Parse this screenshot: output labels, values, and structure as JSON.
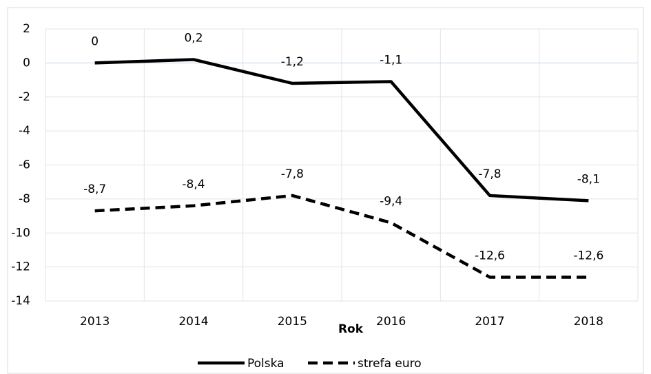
{
  "chart_data": {
    "type": "line",
    "x_label": "Rok",
    "categories": [
      "2013",
      "2014",
      "2015",
      "2016",
      "2017",
      "2018"
    ],
    "series": [
      {
        "name": "Polska",
        "color": "#000000",
        "line_style": "solid",
        "values": [
          0,
          0.2,
          -1.2,
          -1.1,
          -7.8,
          -8.1
        ],
        "value_labels": [
          "0",
          "0,2",
          "-1,2",
          "-1,1",
          "-7,8",
          "-8,1"
        ]
      },
      {
        "name": "strefa euro",
        "color": "#000000",
        "line_style": "dashed",
        "values": [
          -8.7,
          -8.4,
          -7.8,
          -9.4,
          -12.6,
          -12.6
        ],
        "value_labels": [
          "-8,7",
          "-8,4",
          "-7,8",
          "-9,4",
          "-12,6",
          "-12,6"
        ]
      }
    ],
    "ylim": [
      -14,
      2
    ],
    "yticks": [
      -14,
      -12,
      -10,
      -8,
      -6,
      -4,
      -2,
      0,
      2
    ],
    "grid": true,
    "legend": "bottom"
  }
}
